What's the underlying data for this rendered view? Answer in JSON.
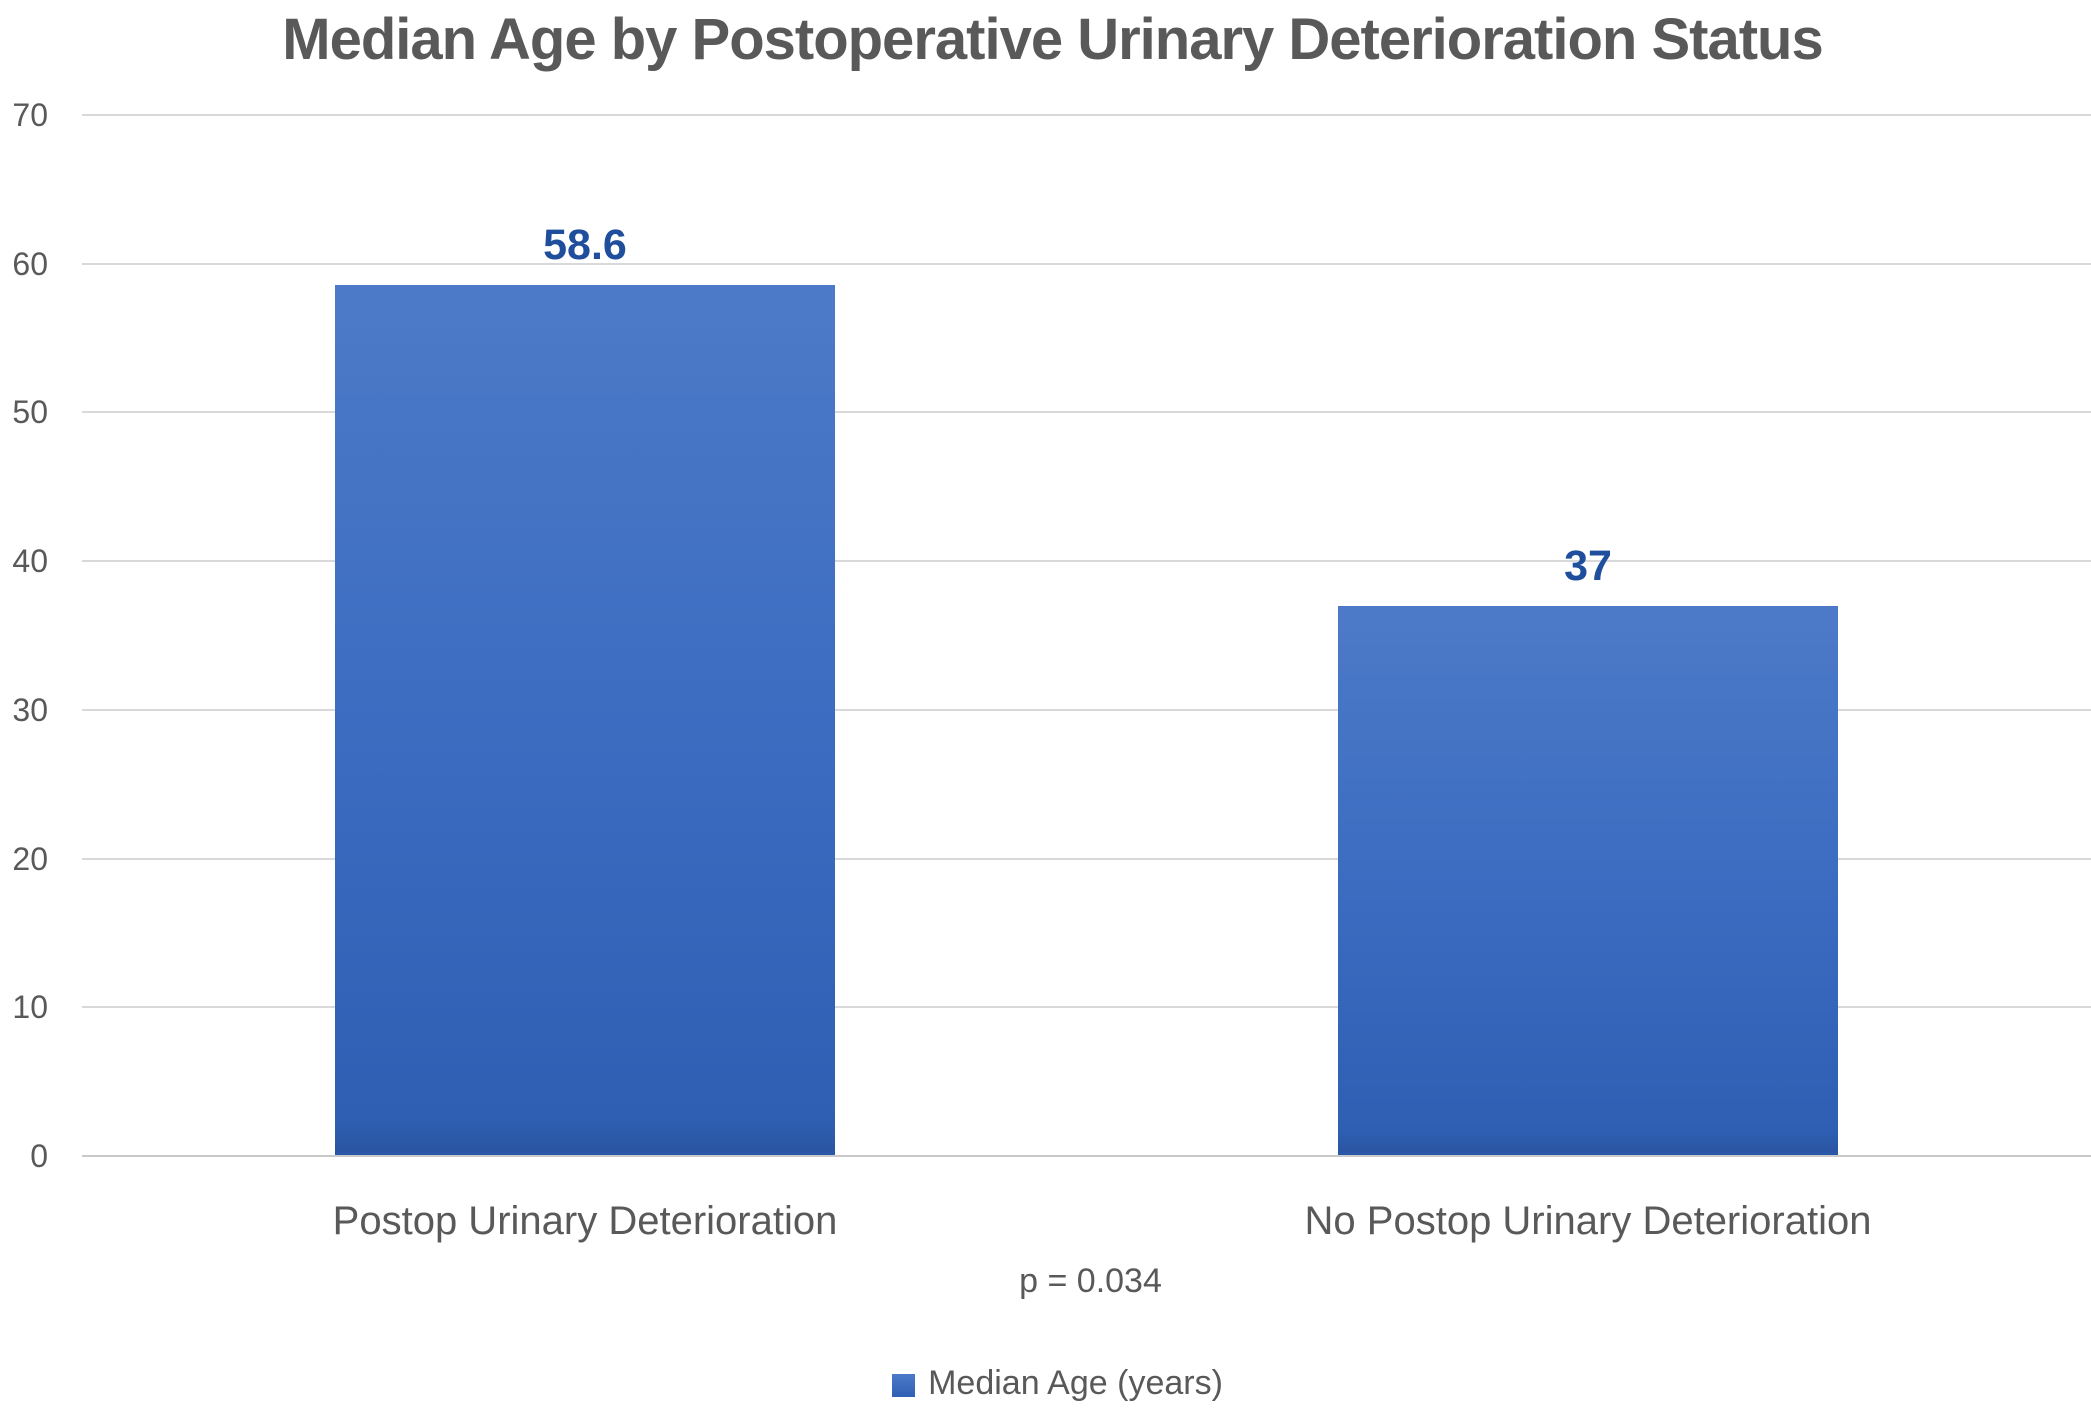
{
  "chart_data": {
    "type": "bar",
    "title": "Median Age by Postoperative Urinary Deterioration Status",
    "categories": [
      "Postop Urinary Deterioration",
      "No Postop Urinary Deterioration"
    ],
    "values": [
      58.6,
      37
    ],
    "value_labels": [
      "58.6",
      "37"
    ],
    "series": [
      {
        "name": "Median Age (years)",
        "values": [
          58.6,
          37
        ]
      }
    ],
    "legend": [
      "Median Age (years)"
    ],
    "legend_position": "bottom",
    "annotation": "p = 0.034",
    "xlabel": "",
    "ylabel": "",
    "ylim": [
      0,
      70
    ],
    "y_ticks": [
      0,
      10,
      20,
      30,
      40,
      50,
      60,
      70
    ],
    "grid": true,
    "colors": {
      "bar_top": "#4d7ac8",
      "bar_bottom": "#2f5fb3",
      "bar_edge": "#2b57a8",
      "data_label": "#1f4e9c",
      "text": "#595959",
      "gridline": "#d9d9d9",
      "legend_marker": "#3b6bc8",
      "background": "#ffffff"
    }
  }
}
